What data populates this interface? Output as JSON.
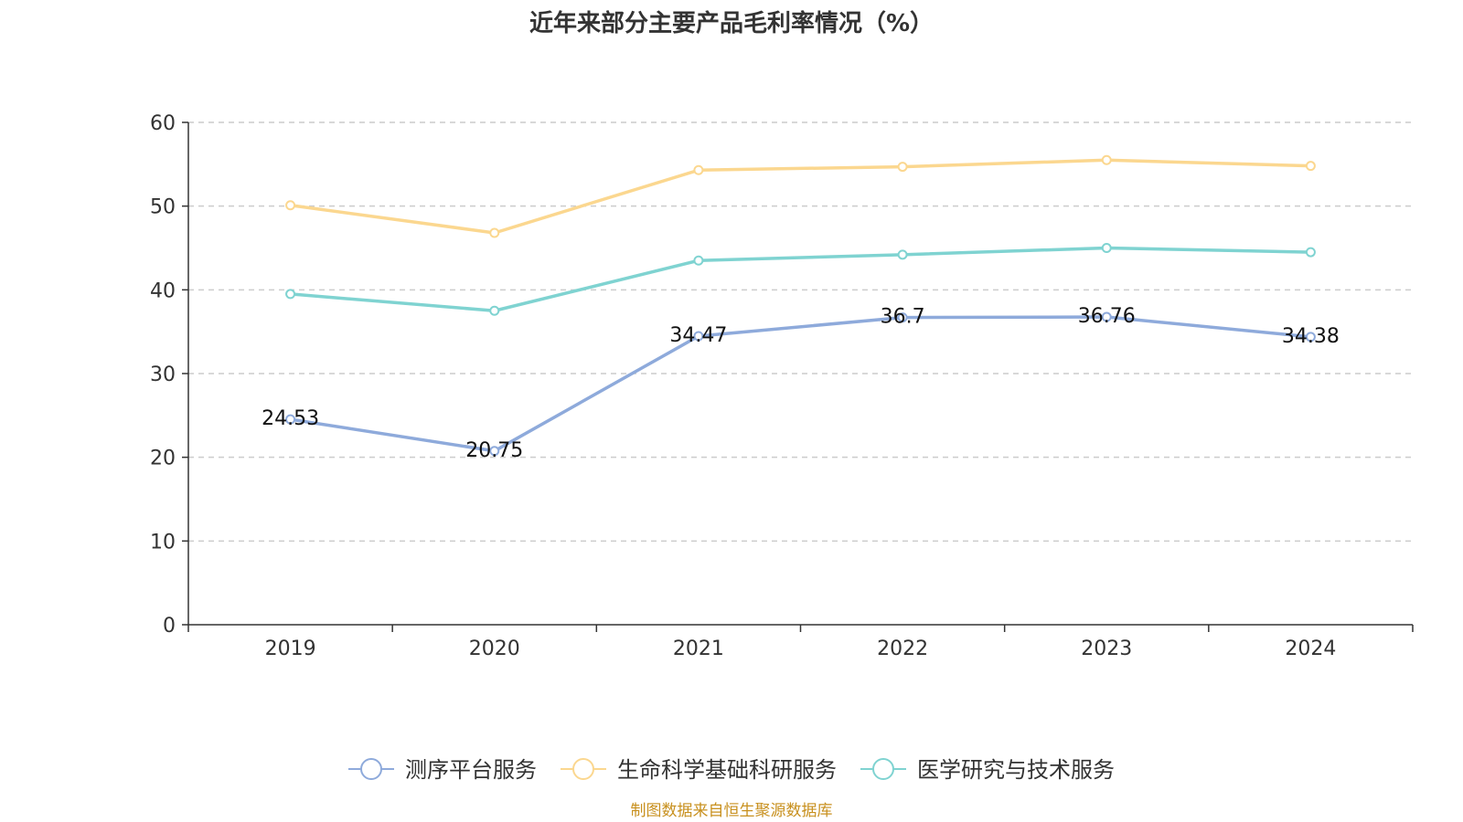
{
  "chart_data": {
    "type": "line",
    "title": "近年来部分主要产品毛利率情况（%）",
    "categories": [
      "2019",
      "2020",
      "2021",
      "2022",
      "2023",
      "2024"
    ],
    "ylim": [
      0,
      60
    ],
    "yticks": [
      "0",
      "10",
      "20",
      "30",
      "40",
      "50",
      "60"
    ],
    "grid": true,
    "legend_position": "bottom",
    "series": [
      {
        "name": "测序平台服务",
        "color": "#8eaadb",
        "values": [
          24.53,
          20.75,
          34.47,
          36.7,
          36.76,
          34.38
        ],
        "labels": [
          "24.53",
          "20.75",
          "34.47",
          "36.7",
          "36.76",
          "34.38"
        ]
      },
      {
        "name": "生命科学基础科研服务",
        "color": "#fbd78f",
        "values": [
          50.1,
          46.8,
          54.3,
          54.7,
          55.5,
          54.8
        ]
      },
      {
        "name": "医学研究与技术服务",
        "color": "#7fd3d1",
        "values": [
          39.5,
          37.5,
          43.5,
          44.2,
          45.0,
          44.5
        ]
      }
    ]
  },
  "source_note": "制图数据来自恒生聚源数据库"
}
